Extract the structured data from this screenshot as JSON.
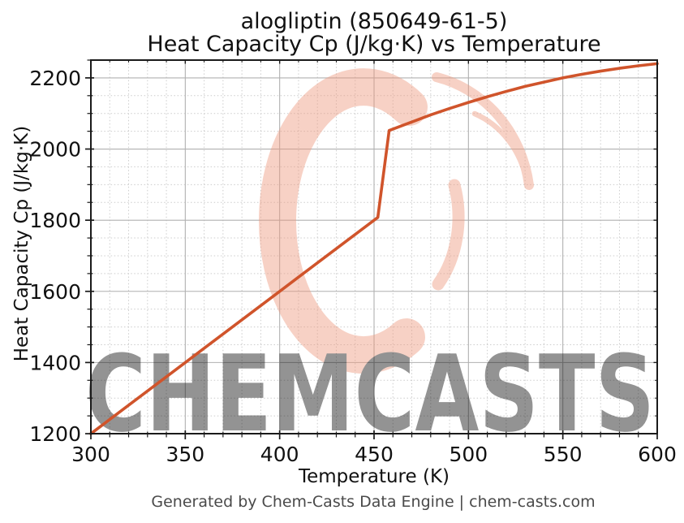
{
  "watermark": {
    "text": "CHEMCASTS",
    "logo": "chemcasts-crescent-logo",
    "color": "#ee9a7f"
  },
  "footer": {
    "text": "Generated by Chem-Casts Data Engine | chem-casts.com"
  },
  "chart_data": {
    "type": "line",
    "title_line1": "alogliptin (850649-61-5)",
    "title_line2": "Heat Capacity Cp (J/kg·K) vs Temperature",
    "xlabel": "Temperature (K)",
    "ylabel": "Heat Capacity Cp (J/kg·K)",
    "xlim": [
      300,
      600
    ],
    "ylim": [
      1200,
      2250
    ],
    "x_ticks": [
      300,
      350,
      400,
      450,
      500,
      550,
      600
    ],
    "y_ticks": [
      1200,
      1400,
      1600,
      1800,
      2000,
      2200
    ],
    "x_minor_step": 10,
    "y_minor_step": 50,
    "grid": {
      "major": true,
      "minor": true,
      "major_color": "#b0b0b0",
      "minor_color": "#cccccc"
    },
    "line_color": "#d0542b",
    "spine_color": "#1a1a1a",
    "series": [
      {
        "name": "Heat Capacity Cp (J/kg·K)",
        "points": [
          [
            300,
            1200
          ],
          [
            310,
            1240
          ],
          [
            320,
            1280
          ],
          [
            330,
            1320
          ],
          [
            340,
            1360
          ],
          [
            350,
            1400
          ],
          [
            360,
            1440
          ],
          [
            370,
            1480
          ],
          [
            380,
            1520
          ],
          [
            390,
            1560
          ],
          [
            400,
            1600
          ],
          [
            410,
            1640
          ],
          [
            420,
            1680
          ],
          [
            430,
            1720
          ],
          [
            440,
            1760
          ],
          [
            450,
            1800
          ],
          [
            452,
            1808
          ],
          [
            458,
            2052
          ],
          [
            465,
            2066
          ],
          [
            470,
            2076
          ],
          [
            480,
            2096
          ],
          [
            490,
            2114
          ],
          [
            500,
            2131
          ],
          [
            510,
            2147
          ],
          [
            520,
            2162
          ],
          [
            530,
            2176
          ],
          [
            540,
            2188
          ],
          [
            550,
            2200
          ],
          [
            560,
            2210
          ],
          [
            570,
            2219
          ],
          [
            580,
            2227
          ],
          [
            590,
            2234
          ],
          [
            600,
            2240
          ]
        ]
      }
    ]
  }
}
